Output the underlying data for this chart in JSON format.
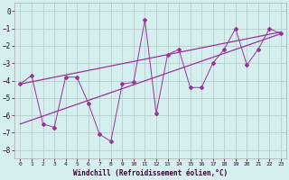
{
  "xlabel": "Windchill (Refroidissement éolien,°C)",
  "bg_color": "#d5eeee",
  "grid_color": "#b0c8c8",
  "line_color": "#993399",
  "x_data": [
    0,
    1,
    2,
    3,
    4,
    5,
    6,
    7,
    8,
    9,
    10,
    11,
    12,
    13,
    14,
    15,
    16,
    17,
    18,
    19,
    20,
    21,
    22,
    23
  ],
  "y_scatter": [
    -4.2,
    -3.7,
    -6.5,
    -6.7,
    -3.8,
    -3.8,
    -5.3,
    -7.1,
    -7.5,
    -4.2,
    -4.1,
    -0.5,
    -5.9,
    -2.5,
    -2.2,
    -4.4,
    -4.4,
    -3.0,
    -2.2,
    -1.0,
    -3.1,
    -2.2,
    -1.0,
    -1.3
  ],
  "trend1_x": [
    0,
    23
  ],
  "trend1_y": [
    -6.5,
    -1.3
  ],
  "trend2_x": [
    0,
    23
  ],
  "trend2_y": [
    -4.2,
    -1.2
  ],
  "ylim": [
    -8.5,
    0.5
  ],
  "xlim": [
    -0.5,
    23.5
  ],
  "yticks": [
    0,
    -1,
    -2,
    -3,
    -4,
    -5,
    -6,
    -7,
    -8
  ]
}
